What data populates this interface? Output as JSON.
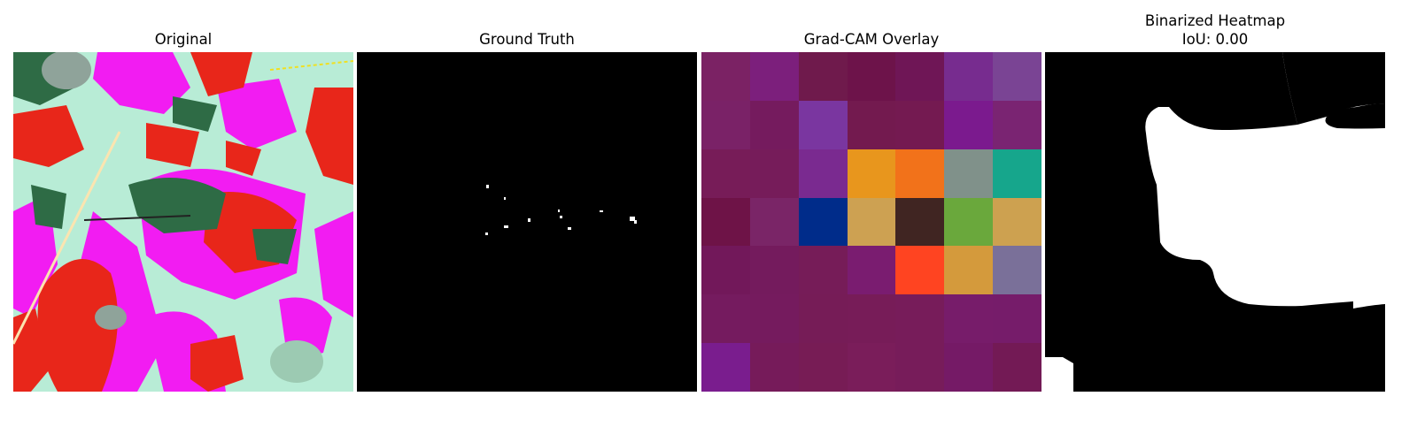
{
  "chart_data": [
    {
      "type": "image",
      "title": "Original",
      "description_colors": {
        "background": "#b8ecd6",
        "red_leaf": "#e8261a",
        "magenta": "#f21cf2",
        "dark_green": "#2e6b45",
        "gray_green": "#8fa39a"
      }
    },
    {
      "type": "heatmap",
      "title": "Ground Truth",
      "colors": {
        "background": "#000000",
        "foreground": "#ffffff"
      }
    },
    {
      "type": "heatmap",
      "title": "Grad-CAM Overlay",
      "grid_size": [
        7,
        7
      ],
      "cell_colors": [
        [
          "#7b2264",
          "#7c1f7c",
          "#6f1a4c",
          "#6d134a",
          "#6f1656",
          "#772c8f",
          "#7a4494"
        ],
        [
          "#7a2267",
          "#751b5e",
          "#7a36a0",
          "#731a4f",
          "#741a51",
          "#7b1a8e",
          "#7a2472"
        ],
        [
          "#771c58",
          "#761c5a",
          "#7a2a90",
          "#e8961d",
          "#f2721a",
          "#80918a",
          "#16a68c"
        ],
        [
          "#6e1347",
          "#7a2567",
          "#002c8a",
          "#cda152",
          "#402522",
          "#6aa83c",
          "#cda150"
        ],
        [
          "#72185a",
          "#741b5d",
          "#761c58",
          "#7a1c70",
          "#ff4421",
          "#d49a3c",
          "#7a7099"
        ],
        [
          "#751b5f",
          "#751b5e",
          "#761c57",
          "#771c58",
          "#771c5a",
          "#771c6a",
          "#761c6a"
        ],
        [
          "#7a1d8e",
          "#761b5a",
          "#771c55",
          "#7a1d5a",
          "#771c5a",
          "#751a66",
          "#731a55"
        ]
      ]
    },
    {
      "type": "heatmap",
      "title": "Binarized Heatmap",
      "subtitle": "IoU: 0.00",
      "iou": 0.0,
      "colors": {
        "background": "#000000",
        "foreground": "#ffffff"
      }
    }
  ]
}
